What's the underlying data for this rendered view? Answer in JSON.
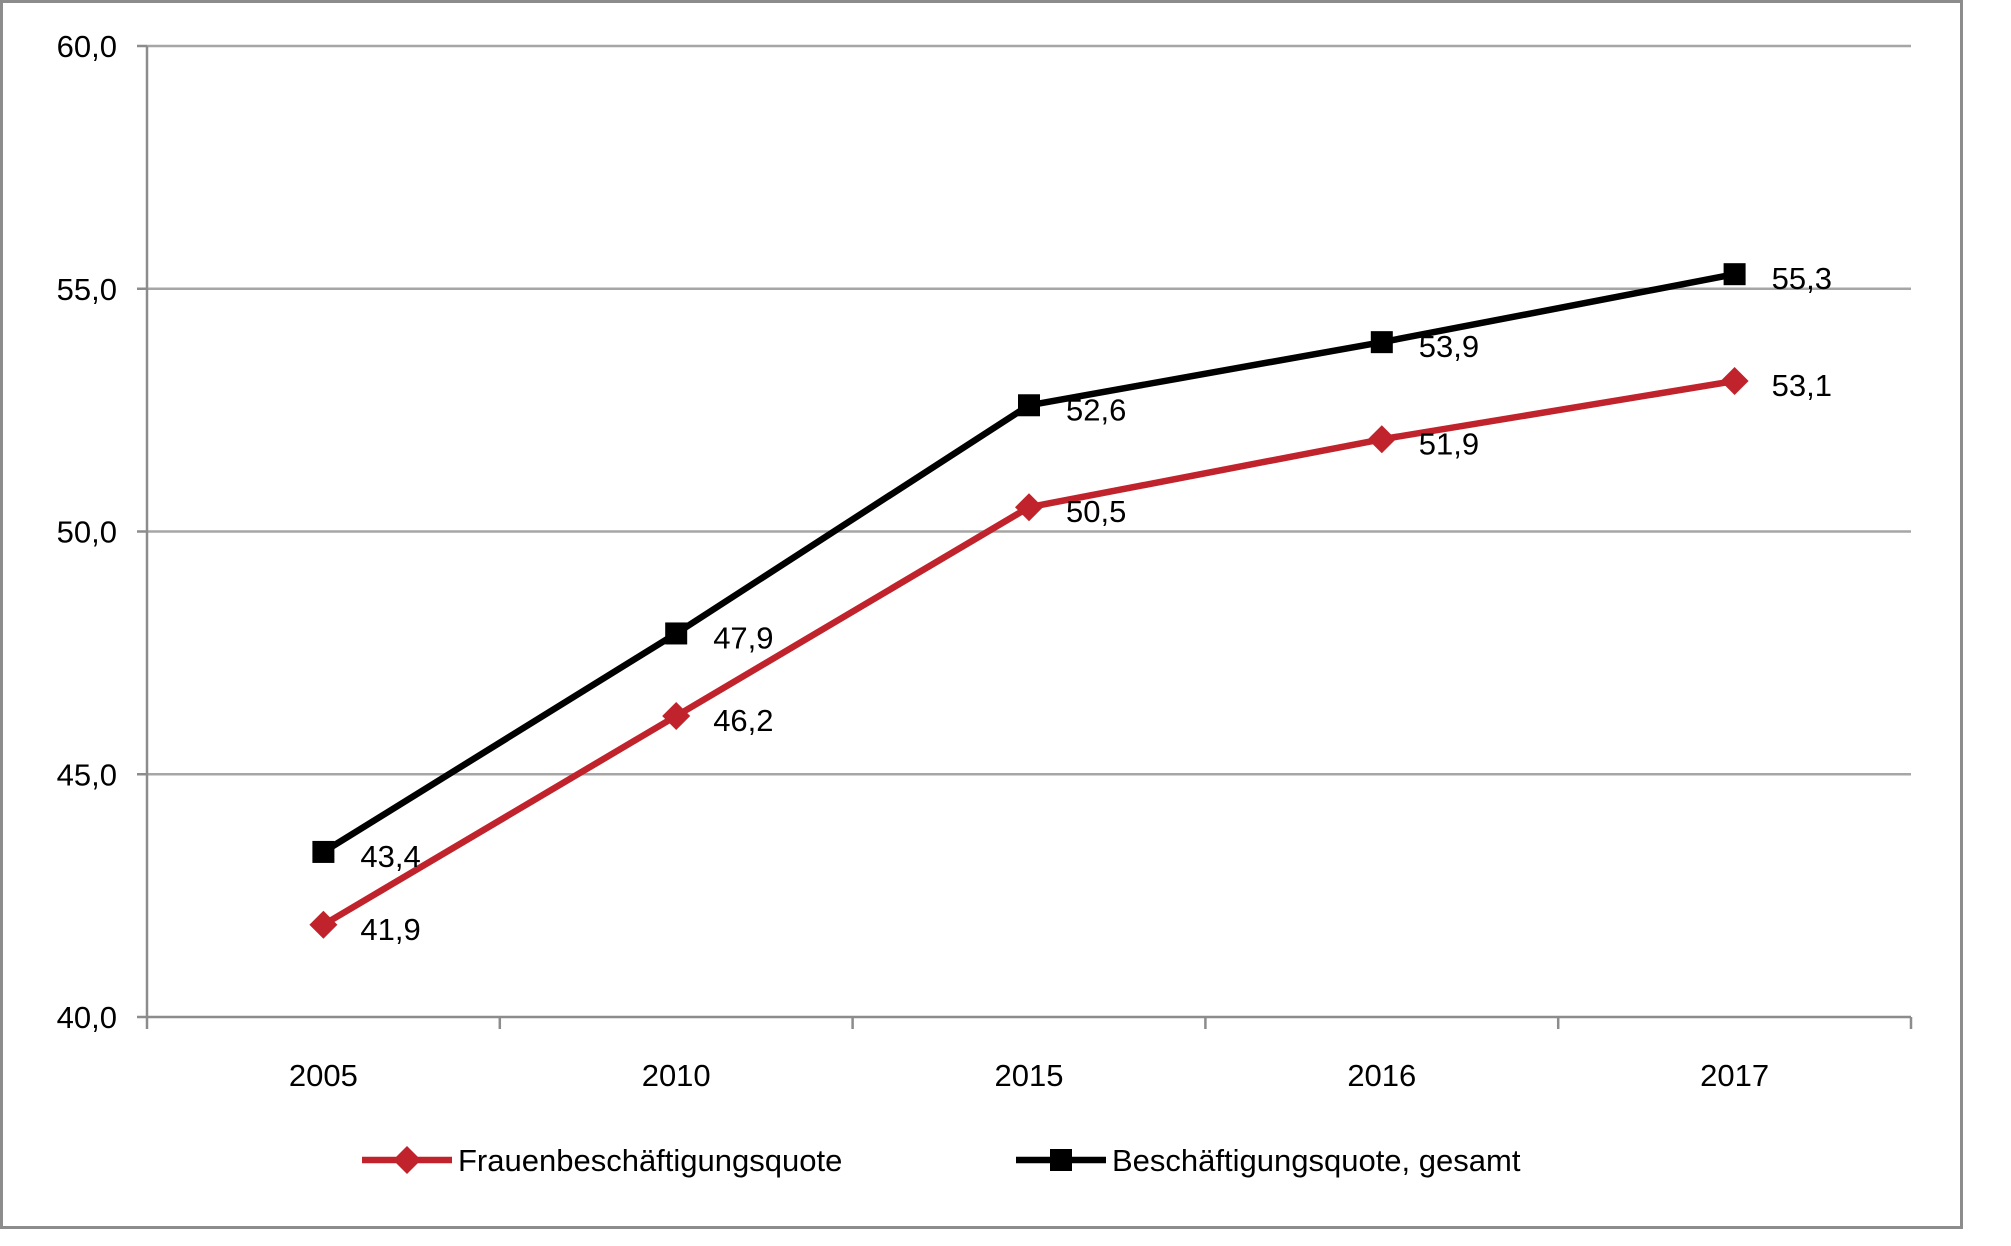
{
  "chart_data": {
    "type": "line",
    "title": "",
    "xlabel": "",
    "ylabel": "",
    "categories": [
      "2005",
      "2010",
      "2015",
      "2016",
      "2017"
    ],
    "ylim": [
      40,
      60
    ],
    "yticks": [
      40,
      45,
      50,
      55,
      60
    ],
    "ytick_labels": [
      "40,0",
      "45,0",
      "50,0",
      "55,0",
      "60,0"
    ],
    "grid": true,
    "legend_position": "bottom",
    "series": [
      {
        "name": "Frauenbeschäftigungsquote",
        "values": [
          41.9,
          46.2,
          50.5,
          51.9,
          53.1
        ],
        "labels": [
          "41,9",
          "46,2",
          "50,5",
          "51,9",
          "53,1"
        ],
        "color": "#c0232b",
        "marker": "diamond"
      },
      {
        "name": "Beschäftigungsquote, gesamt",
        "values": [
          43.4,
          47.9,
          52.6,
          53.9,
          55.3
        ],
        "labels": [
          "43,4",
          "47,9",
          "52,6",
          "53,9",
          "55,3"
        ],
        "color": "#000000",
        "marker": "square"
      }
    ]
  }
}
